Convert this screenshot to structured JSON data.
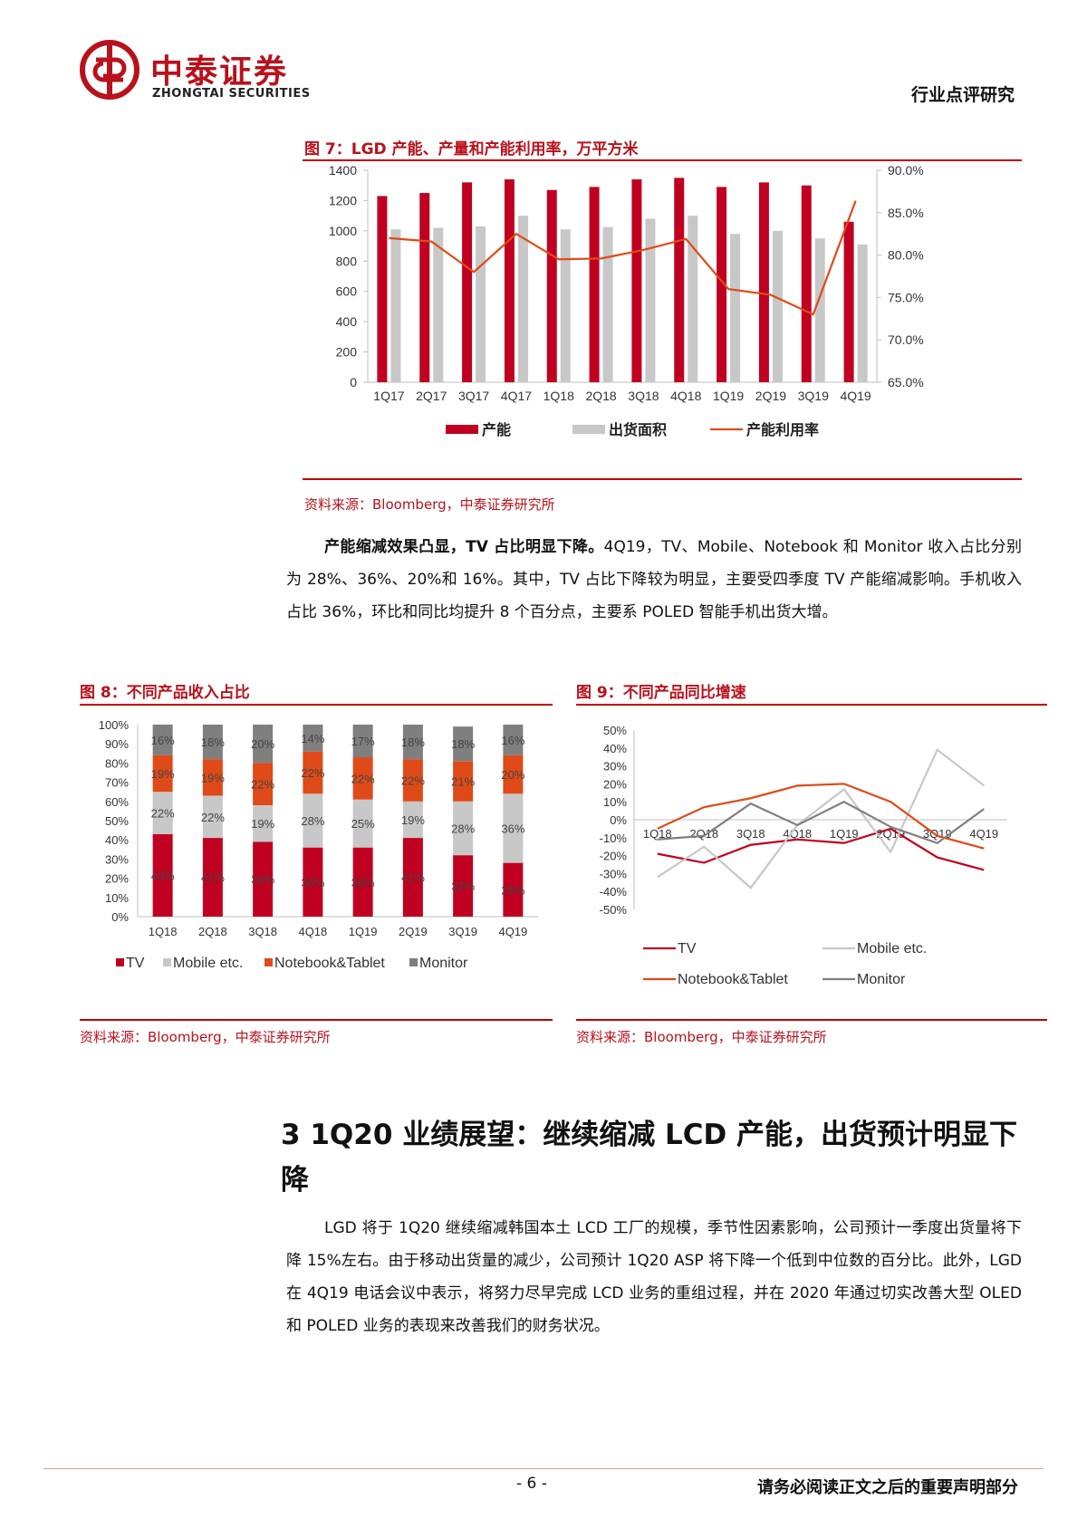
{
  "header": {
    "company_cn": "中泰证券",
    "company_en": "ZHONGTAI SECURITIES",
    "report_type": "行业点评研究"
  },
  "figure7": {
    "title": "图 7：LGD 产能、产量和产能利用率，万平方米",
    "source": "资料来源：Bloomberg，中泰证券研究所"
  },
  "figure8": {
    "title": "图 8：不同产品收入占比",
    "source": "资料来源：Bloomberg，中泰证券研究所"
  },
  "figure9": {
    "title": "图 9：不同产品同比增速",
    "source": "资料来源：Bloomberg，中泰证券研究所"
  },
  "paragraph1": {
    "lead": "产能缩减效果凸显，TV 占比明显下降。",
    "body": "4Q19，TV、Mobile、Notebook 和 Monitor 收入占比分别为 28%、36%、20%和 16%。其中，TV 占比下降较为明显，主要受四季度 TV 产能缩减影响。手机收入占比 36%，环比和同比均提升 8 个百分点，主要系 POLED 智能手机出货大增。"
  },
  "section3": {
    "heading": "3 1Q20 业绩展望：继续缩减 LCD 产能，出货预计明显下降",
    "body": "LGD 将于 1Q20 继续缩减韩国本土 LCD 工厂的规模，季节性因素影响，公司预计一季度出货量将下降 15%左右。由于移动出货量的减少，公司预计 1Q20 ASP 将下降一个低到中位数的百分比。此外，LGD 在 4Q19 电话会议中表示，将努力尽早完成 LCD 业务的重组过程，并在 2020 年通过切实改善大型 OLED 和 POLED 业务的表现来改善我们的财务状况。"
  },
  "footer": {
    "page": "- 6 -",
    "disclaimer": "请务必阅读正文之后的重要声明部分"
  },
  "colors": {
    "brand_red": "#b8121d",
    "bar_red": "#c00020",
    "bar_grey": "#c8c8c8",
    "line_orange": "#e04a18",
    "monitor_grey": "#7f7f7f"
  },
  "chart_data": [
    {
      "id": "fig7",
      "type": "bar+line",
      "categories": [
        "1Q17",
        "2Q17",
        "3Q17",
        "4Q17",
        "1Q18",
        "2Q18",
        "3Q18",
        "4Q18",
        "1Q19",
        "2Q19",
        "3Q19",
        "4Q19"
      ],
      "series": [
        {
          "name": "产能",
          "type": "bar",
          "axis": "left",
          "values": [
            1230,
            1250,
            1320,
            1340,
            1270,
            1290,
            1340,
            1350,
            1290,
            1320,
            1300,
            1060
          ]
        },
        {
          "name": "出货面积",
          "type": "bar",
          "axis": "left",
          "values": [
            1010,
            1020,
            1030,
            1100,
            1010,
            1025,
            1080,
            1100,
            980,
            1000,
            950,
            910
          ]
        },
        {
          "name": "产能利用率",
          "type": "line",
          "axis": "right",
          "values": [
            82.0,
            81.6,
            78.0,
            82.5,
            79.5,
            79.6,
            80.6,
            81.9,
            76.0,
            75.3,
            73.0,
            86.4
          ]
        }
      ],
      "yleft_ticks": [
        "0",
        "200",
        "400",
        "600",
        "800",
        "1000",
        "1200",
        "1400"
      ],
      "yleft_range": [
        0,
        1400
      ],
      "yright_ticks": [
        "65.0%",
        "70.0%",
        "75.0%",
        "80.0%",
        "85.0%",
        "90.0%"
      ],
      "yright_range": [
        65,
        90
      ],
      "legend": [
        "产能",
        "出货面积",
        "产能利用率"
      ],
      "legend_position": "bottom"
    },
    {
      "id": "fig8",
      "type": "stacked-bar",
      "categories": [
        "1Q18",
        "2Q18",
        "3Q18",
        "4Q18",
        "1Q19",
        "2Q19",
        "3Q19",
        "4Q19"
      ],
      "series": [
        {
          "name": "TV",
          "values": [
            43,
            41,
            39,
            36,
            36,
            41,
            32,
            28
          ]
        },
        {
          "name": "Mobile etc.",
          "values": [
            22,
            22,
            19,
            28,
            25,
            19,
            28,
            36
          ]
        },
        {
          "name": "Notebook&Tablet",
          "values": [
            19,
            19,
            22,
            22,
            22,
            22,
            21,
            20
          ]
        },
        {
          "name": "Monitor",
          "values": [
            16,
            18,
            20,
            14,
            17,
            18,
            18,
            16
          ]
        }
      ],
      "y_ticks": [
        "0%",
        "10%",
        "20%",
        "30%",
        "40%",
        "50%",
        "60%",
        "70%",
        "80%",
        "90%",
        "100%"
      ],
      "y_range": [
        0,
        100
      ],
      "legend": [
        "TV",
        "Mobile etc.",
        "Notebook&Tablet",
        "Monitor"
      ],
      "legend_position": "bottom"
    },
    {
      "id": "fig9",
      "type": "line",
      "categories": [
        "1Q18",
        "2Q18",
        "3Q18",
        "4Q18",
        "1Q19",
        "2Q19",
        "3Q19",
        "4Q19"
      ],
      "series": [
        {
          "name": "TV",
          "values": [
            -19,
            -24,
            -14,
            -11,
            -13,
            -5,
            -21,
            -28
          ]
        },
        {
          "name": "Mobile etc.",
          "values": [
            -32,
            -15,
            -38,
            -3,
            17,
            -18,
            39,
            19
          ]
        },
        {
          "name": "Notebook&Tablet",
          "values": [
            -5,
            7,
            12,
            19,
            20,
            10,
            -9,
            -16
          ]
        },
        {
          "name": "Monitor",
          "values": [
            -11,
            -9,
            9,
            -3,
            10,
            -4,
            -13,
            6
          ]
        }
      ],
      "y_ticks": [
        "-50%",
        "-40%",
        "-30%",
        "-20%",
        "-10%",
        "0%",
        "10%",
        "20%",
        "30%",
        "40%",
        "50%"
      ],
      "y_range": [
        -50,
        50
      ],
      "legend": [
        "TV",
        "Mobile etc.",
        "Notebook&Tablet",
        "Monitor"
      ],
      "legend_position": "bottom"
    }
  ]
}
